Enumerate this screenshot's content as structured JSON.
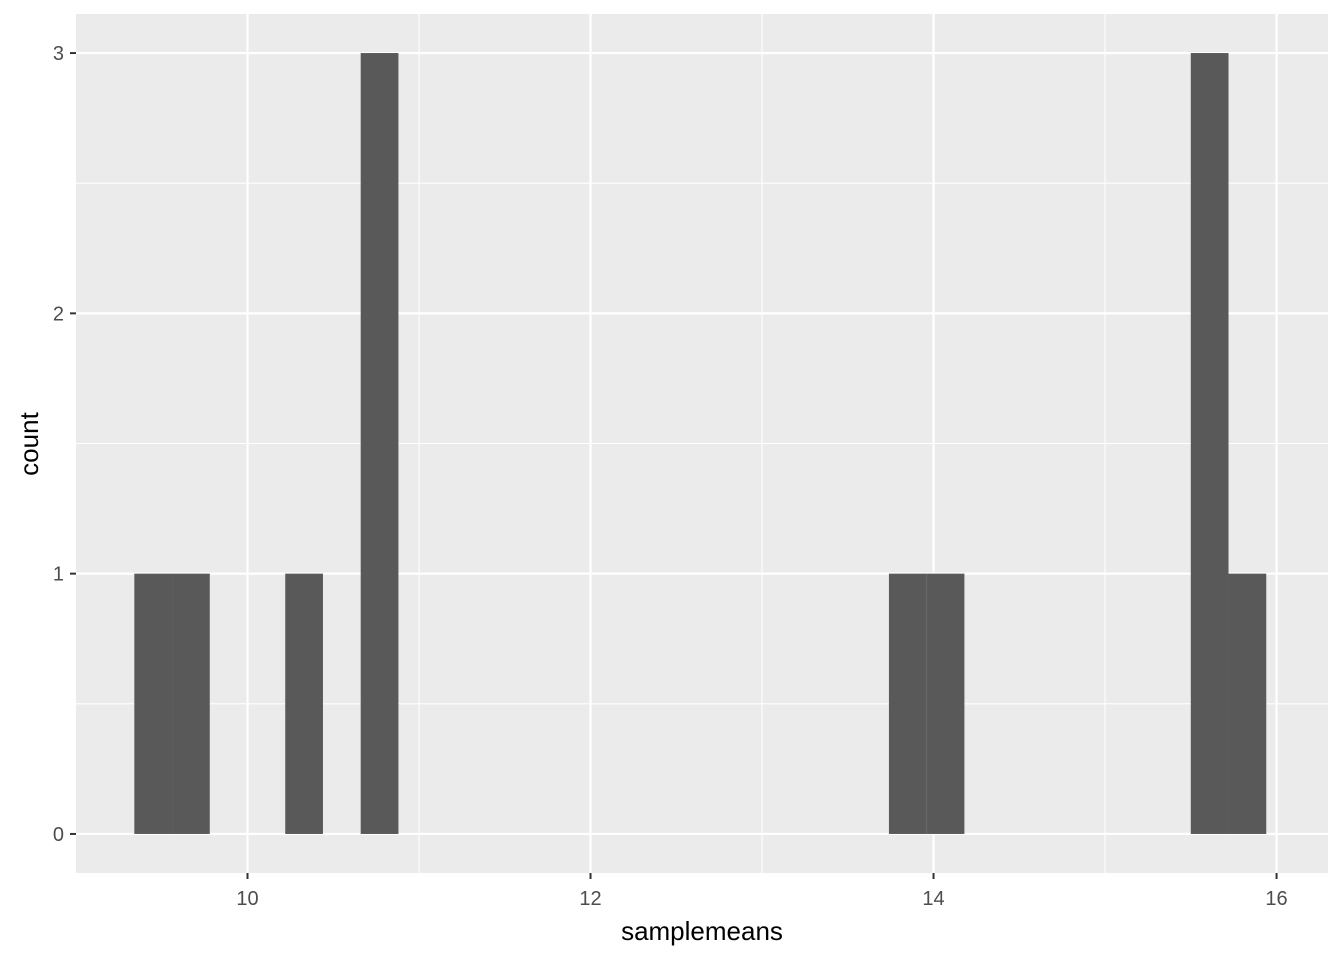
{
  "chart_data": {
    "type": "bar",
    "subtype": "histogram",
    "title": "",
    "xlabel": "samplemeans",
    "ylabel": "count",
    "xlim": [
      9.0,
      16.3
    ],
    "ylim": [
      -0.15,
      3.15
    ],
    "x_ticks": [
      10,
      12,
      14,
      16
    ],
    "x_minor_ticks": [
      11,
      13,
      15
    ],
    "y_ticks": [
      0,
      1,
      2,
      3
    ],
    "y_minor_ticks": [
      0.5,
      1.5,
      2.5
    ],
    "bin_width": 0.22,
    "bins": [
      {
        "x0": 9.34,
        "x1": 9.56,
        "count": 1
      },
      {
        "x0": 9.56,
        "x1": 9.78,
        "count": 1
      },
      {
        "x0": 10.22,
        "x1": 10.44,
        "count": 1
      },
      {
        "x0": 10.66,
        "x1": 10.88,
        "count": 3
      },
      {
        "x0": 13.74,
        "x1": 13.96,
        "count": 1
      },
      {
        "x0": 13.96,
        "x1": 14.18,
        "count": 1
      },
      {
        "x0": 15.5,
        "x1": 15.72,
        "count": 3
      },
      {
        "x0": 15.72,
        "x1": 15.94,
        "count": 1
      }
    ],
    "grid": true,
    "legend": "none",
    "colors": {
      "panel": "#ebebeb",
      "grid": "#ffffff",
      "bar": "#595959",
      "tick_text": "#4d4d4d",
      "axis_title": "#000000"
    }
  }
}
